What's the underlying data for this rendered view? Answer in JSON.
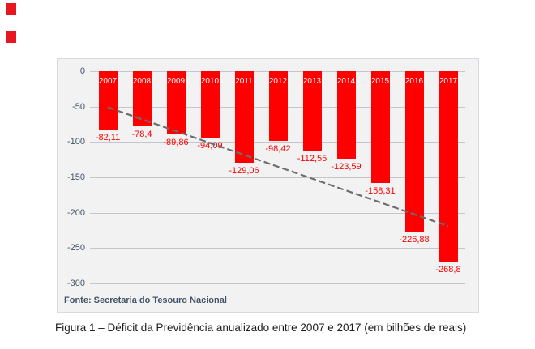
{
  "page": {
    "caption": "Figura 1 – Déficit da Previdência anualizado entre 2007 e 2017 (em bilhões de reais)"
  },
  "decorations": {
    "marker_color": "#e8161e"
  },
  "chart_data": {
    "type": "bar",
    "title": "",
    "categories": [
      "2007",
      "2008",
      "2009",
      "2010",
      "2011",
      "2012",
      "2013",
      "2014",
      "2015",
      "2016",
      "2017"
    ],
    "values": [
      -82.11,
      -78.4,
      -89.86,
      -94.09,
      -129.06,
      -98.42,
      -112.55,
      -123.59,
      -158.31,
      -226.88,
      -268.8
    ],
    "value_labels": [
      "-82,11",
      "-78,4",
      "-89,86",
      "-94,09",
      "-129,06",
      "-98,42",
      "-112,55",
      "-123,59",
      "-158,31",
      "-226,88",
      "-268,8"
    ],
    "xlabel": "",
    "ylabel": "",
    "ylim": [
      -300,
      0
    ],
    "y_ticks": [
      0,
      -50,
      -100,
      -150,
      -200,
      -250,
      -300
    ],
    "y_tick_labels": [
      "0",
      "-50",
      "-100",
      "-150",
      "-200",
      "-250",
      "-300"
    ],
    "grid": true,
    "legend": "none",
    "trendline": {
      "style": "dashed",
      "start_year": "2007",
      "start_value": -51,
      "end_year": "2017",
      "end_value": -219
    },
    "source_note": "Fonte: Secretaria do Tesouro Nacional",
    "colors": {
      "bar": "#fe0000",
      "value_label": "#fe0000",
      "year_label": "#ffffff",
      "axis_label": "#44546a",
      "gridline": "#c3c7cb",
      "trendline": "#6d6d6d",
      "panel_bg": "#f2f2f2",
      "panel_border": "#d7dade",
      "source_note": "#44546a"
    }
  }
}
